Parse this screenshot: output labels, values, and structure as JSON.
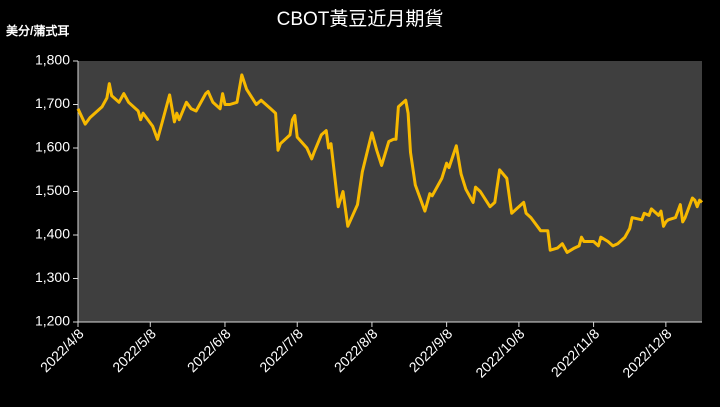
{
  "chart_data": {
    "type": "line",
    "title": "CBOT黃豆近月期貨",
    "y_label": "美分/蒲式耳",
    "xlim": [
      "2022-04-08",
      "2022-12-23"
    ],
    "xticks": [
      {
        "value": "2022-04-08",
        "label": "2022/4/8"
      },
      {
        "value": "2022-05-08",
        "label": "2022/5/8"
      },
      {
        "value": "2022-06-08",
        "label": "2022/6/8"
      },
      {
        "value": "2022-07-08",
        "label": "2022/7/8"
      },
      {
        "value": "2022-08-08",
        "label": "2022/8/8"
      },
      {
        "value": "2022-09-08",
        "label": "2022/9/8"
      },
      {
        "value": "2022-10-08",
        "label": "2022/10/8"
      },
      {
        "value": "2022-11-08",
        "label": "2022/11/8"
      },
      {
        "value": "2022-12-08",
        "label": "2022/12/8"
      }
    ],
    "ylim": [
      1200,
      1800
    ],
    "yticks": [
      {
        "value": 1200,
        "label": "1,200"
      },
      {
        "value": 1300,
        "label": "1,300"
      },
      {
        "value": 1400,
        "label": "1,400"
      },
      {
        "value": 1500,
        "label": "1,500"
      },
      {
        "value": 1600,
        "label": "1,600"
      },
      {
        "value": 1700,
        "label": "1,700"
      },
      {
        "value": 1800,
        "label": "1,800"
      }
    ],
    "grid": false,
    "x": [
      "2022-04-08",
      "2022-04-11",
      "2022-04-13",
      "2022-04-18",
      "2022-04-20",
      "2022-04-21",
      "2022-04-22",
      "2022-04-25",
      "2022-04-27",
      "2022-04-29",
      "2022-05-03",
      "2022-05-04",
      "2022-05-05",
      "2022-05-09",
      "2022-05-11",
      "2022-05-13",
      "2022-05-16",
      "2022-05-18",
      "2022-05-19",
      "2022-05-20",
      "2022-05-23",
      "2022-05-25",
      "2022-05-27",
      "2022-05-31",
      "2022-06-01",
      "2022-06-03",
      "2022-06-06",
      "2022-06-07",
      "2022-06-08",
      "2022-06-10",
      "2022-06-13",
      "2022-06-15",
      "2022-06-17",
      "2022-06-21",
      "2022-06-23",
      "2022-06-27",
      "2022-06-29",
      "2022-06-30",
      "2022-07-01",
      "2022-07-05",
      "2022-07-06",
      "2022-07-07",
      "2022-07-08",
      "2022-07-12",
      "2022-07-14",
      "2022-07-15",
      "2022-07-18",
      "2022-07-20",
      "2022-07-21",
      "2022-07-22",
      "2022-07-25",
      "2022-07-27",
      "2022-07-29",
      "2022-08-02",
      "2022-08-04",
      "2022-08-08",
      "2022-08-10",
      "2022-08-12",
      "2022-08-15",
      "2022-08-17",
      "2022-08-18",
      "2022-08-19",
      "2022-08-22",
      "2022-08-23",
      "2022-08-24",
      "2022-08-26",
      "2022-08-30",
      "2022-09-01",
      "2022-09-02",
      "2022-09-06",
      "2022-09-08",
      "2022-09-09",
      "2022-09-12",
      "2022-09-14",
      "2022-09-16",
      "2022-09-19",
      "2022-09-20",
      "2022-09-22",
      "2022-09-26",
      "2022-09-28",
      "2022-09-30",
      "2022-10-03",
      "2022-10-05",
      "2022-10-07",
      "2022-10-10",
      "2022-10-11",
      "2022-10-13",
      "2022-10-17",
      "2022-10-20",
      "2022-10-21",
      "2022-10-24",
      "2022-10-26",
      "2022-10-28",
      "2022-10-31",
      "2022-11-02",
      "2022-11-03",
      "2022-11-04",
      "2022-11-08",
      "2022-11-10",
      "2022-11-11",
      "2022-11-14",
      "2022-11-16",
      "2022-11-18",
      "2022-11-21",
      "2022-11-23",
      "2022-11-24",
      "2022-11-28",
      "2022-11-29",
      "2022-12-01",
      "2022-12-02",
      "2022-12-05",
      "2022-12-06",
      "2022-12-07",
      "2022-12-08",
      "2022-12-09",
      "2022-12-12",
      "2022-12-13",
      "2022-12-14",
      "2022-12-15",
      "2022-12-16",
      "2022-12-19",
      "2022-12-20",
      "2022-12-21",
      "2022-12-22",
      "2022-12-23"
    ],
    "series": [
      {
        "color": "#f7b900",
        "values": [
          1690,
          1655,
          1670,
          1695,
          1715,
          1748,
          1720,
          1705,
          1725,
          1705,
          1685,
          1665,
          1680,
          1650,
          1620,
          1660,
          1722,
          1660,
          1680,
          1665,
          1705,
          1690,
          1685,
          1725,
          1730,
          1705,
          1690,
          1725,
          1700,
          1700,
          1705,
          1768,
          1735,
          1700,
          1710,
          1690,
          1680,
          1595,
          1610,
          1630,
          1665,
          1675,
          1625,
          1600,
          1575,
          1590,
          1630,
          1640,
          1600,
          1610,
          1465,
          1500,
          1420,
          1470,
          1545,
          1635,
          1595,
          1560,
          1615,
          1620,
          1620,
          1695,
          1710,
          1680,
          1590,
          1515,
          1455,
          1495,
          1490,
          1530,
          1565,
          1555,
          1605,
          1540,
          1505,
          1475,
          1510,
          1500,
          1465,
          1475,
          1550,
          1530,
          1450,
          1460,
          1475,
          1450,
          1440,
          1410,
          1410,
          1365,
          1370,
          1380,
          1360,
          1370,
          1375,
          1395,
          1385,
          1385,
          1375,
          1395,
          1385,
          1375,
          1380,
          1395,
          1415,
          1440,
          1435,
          1450,
          1445,
          1460,
          1445,
          1455,
          1420,
          1430,
          1435,
          1440,
          1455,
          1470,
          1430,
          1440,
          1485,
          1480,
          1465,
          1480,
          1475
        ]
      }
    ]
  }
}
